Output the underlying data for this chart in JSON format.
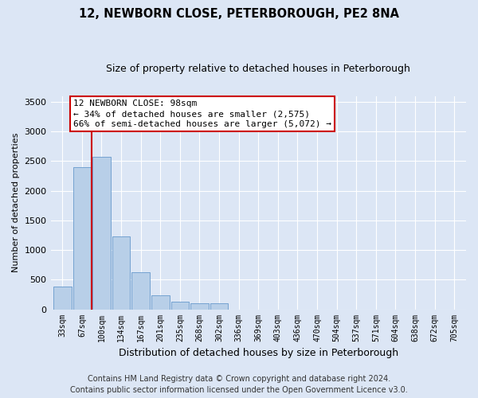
{
  "title": "12, NEWBORN CLOSE, PETERBOROUGH, PE2 8NA",
  "subtitle": "Size of property relative to detached houses in Peterborough",
  "xlabel": "Distribution of detached houses by size in Peterborough",
  "ylabel": "Number of detached properties",
  "categories": [
    "33sqm",
    "67sqm",
    "100sqm",
    "134sqm",
    "167sqm",
    "201sqm",
    "235sqm",
    "268sqm",
    "302sqm",
    "336sqm",
    "369sqm",
    "403sqm",
    "436sqm",
    "470sqm",
    "504sqm",
    "537sqm",
    "571sqm",
    "604sqm",
    "638sqm",
    "672sqm",
    "705sqm"
  ],
  "values": [
    390,
    2400,
    2575,
    1230,
    620,
    240,
    130,
    100,
    100,
    0,
    0,
    0,
    0,
    0,
    0,
    0,
    0,
    0,
    0,
    0,
    0
  ],
  "bar_color": "#b8cfe8",
  "bar_edge_color": "#6699cc",
  "vline_color": "#cc0000",
  "annotation_text": "12 NEWBORN CLOSE: 98sqm\n← 34% of detached houses are smaller (2,575)\n66% of semi-detached houses are larger (5,072) →",
  "annotation_box_color": "#ffffff",
  "annotation_box_edge_color": "#cc0000",
  "ylim": [
    0,
    3600
  ],
  "yticks": [
    0,
    500,
    1000,
    1500,
    2000,
    2500,
    3000,
    3500
  ],
  "background_color": "#dce6f5",
  "plot_bg_color": "#dce6f5",
  "footer_line1": "Contains HM Land Registry data © Crown copyright and database right 2024.",
  "footer_line2": "Contains public sector information licensed under the Open Government Licence v3.0.",
  "title_fontsize": 10.5,
  "subtitle_fontsize": 9,
  "annotation_fontsize": 8,
  "ylabel_fontsize": 8,
  "xlabel_fontsize": 9,
  "footer_fontsize": 7
}
